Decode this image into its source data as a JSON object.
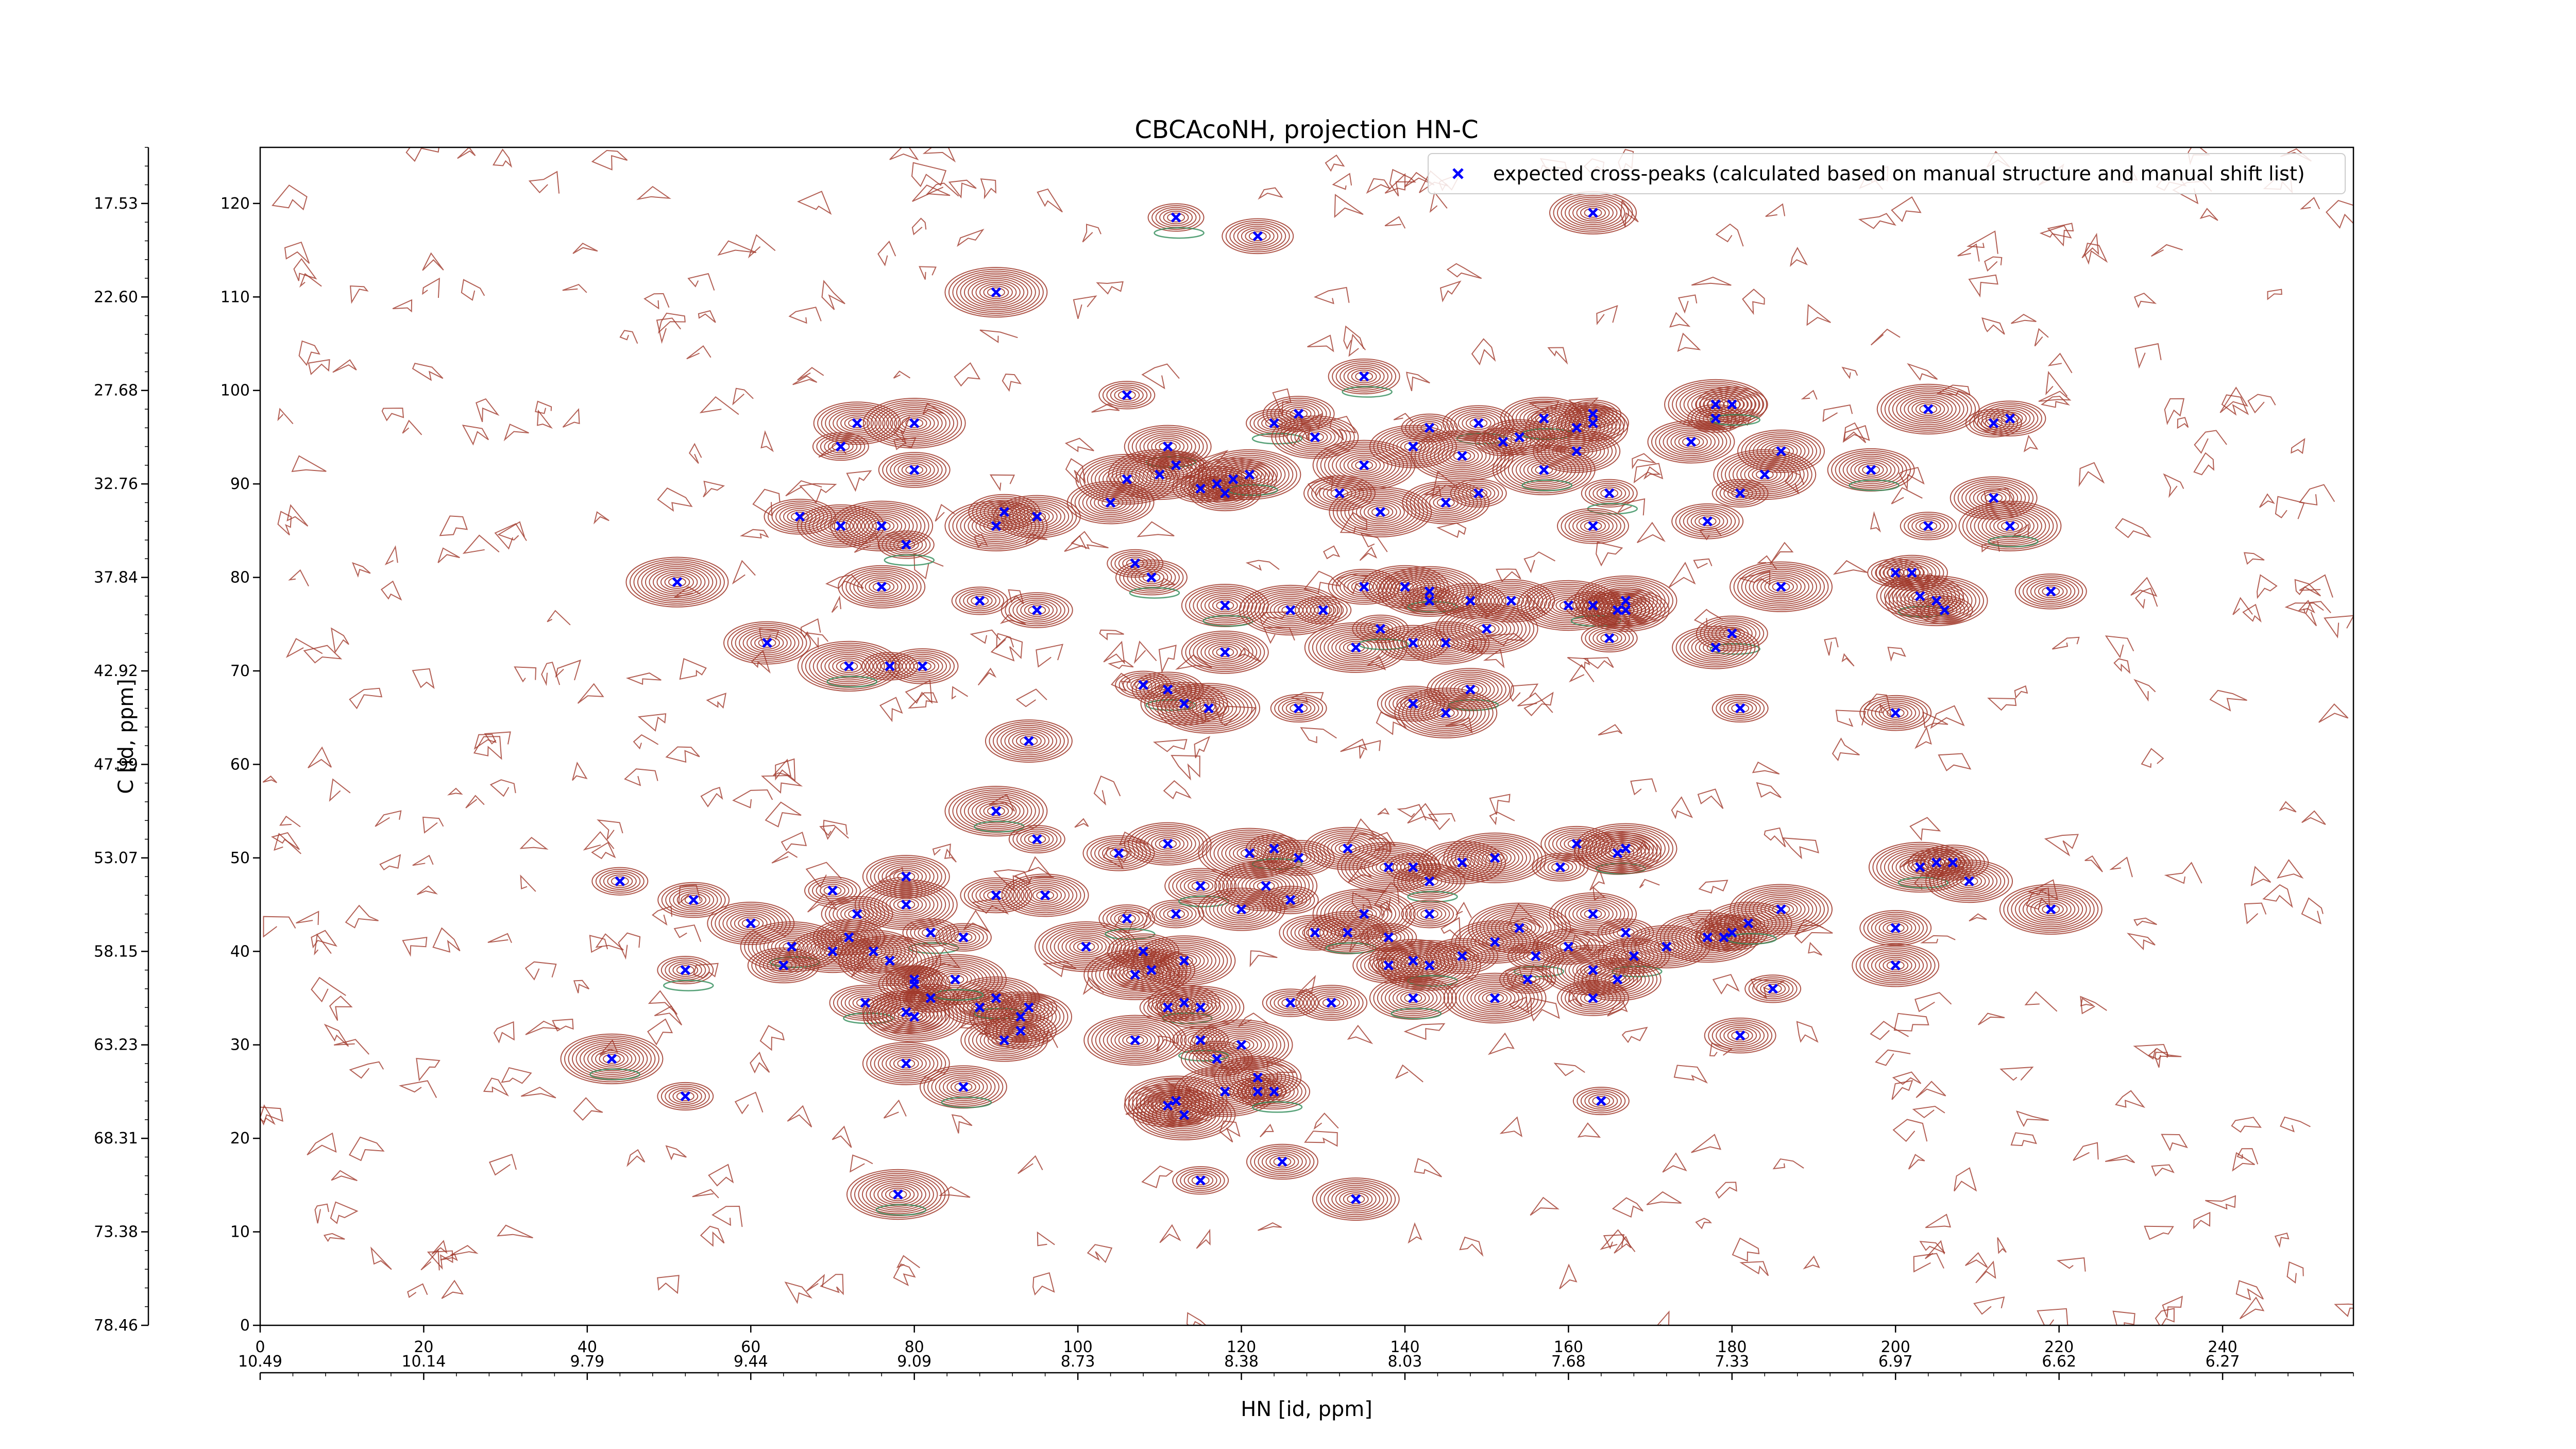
{
  "chart_data": {
    "type": "scatter",
    "title": "CBCAcoNH, projection HN-C",
    "xlabel": "HN [id, ppm]",
    "ylabel": "C [id, ppm]",
    "xlim": [
      0,
      256
    ],
    "ylim": [
      0,
      126
    ],
    "grid": false,
    "legend_position": "top-right",
    "x_ticks": [
      0,
      20,
      40,
      60,
      80,
      100,
      120,
      140,
      160,
      180,
      200,
      220,
      240
    ],
    "y_ticks": [
      0,
      10,
      20,
      30,
      40,
      50,
      60,
      70,
      80,
      90,
      100,
      110,
      120
    ],
    "ppm_x_ticks": [
      {
        "pos": 0,
        "label": "10.49"
      },
      {
        "pos": 20,
        "label": "10.14"
      },
      {
        "pos": 40,
        "label": "9.79"
      },
      {
        "pos": 60,
        "label": "9.44"
      },
      {
        "pos": 80,
        "label": "9.09"
      },
      {
        "pos": 100,
        "label": "8.73"
      },
      {
        "pos": 120,
        "label": "8.38"
      },
      {
        "pos": 140,
        "label": "8.03"
      },
      {
        "pos": 160,
        "label": "7.68"
      },
      {
        "pos": 180,
        "label": "7.33"
      },
      {
        "pos": 200,
        "label": "6.97"
      },
      {
        "pos": 220,
        "label": "6.62"
      },
      {
        "pos": 240,
        "label": "6.27"
      }
    ],
    "ppm_y_ticks": [
      {
        "pos": 120,
        "label": "17.53"
      },
      {
        "pos": 110,
        "label": "22.60"
      },
      {
        "pos": 100,
        "label": "27.68"
      },
      {
        "pos": 90,
        "label": "32.76"
      },
      {
        "pos": 80,
        "label": "37.84"
      },
      {
        "pos": 70,
        "label": "42.92"
      },
      {
        "pos": 60,
        "label": "47.99"
      },
      {
        "pos": 50,
        "label": "53.07"
      },
      {
        "pos": 40,
        "label": "58.15"
      },
      {
        "pos": 30,
        "label": "63.23"
      },
      {
        "pos": 20,
        "label": "68.31"
      },
      {
        "pos": 10,
        "label": "73.38"
      },
      {
        "pos": 0,
        "label": "78.46"
      }
    ],
    "series": [
      {
        "name": "expected cross-peaks (calculated based on manual structure and manual shift list)",
        "color": "#0000ff",
        "marker": "x",
        "points": [
          [
            112,
            118.5
          ],
          [
            122,
            116.5
          ],
          [
            163,
            119
          ],
          [
            90,
            110.5
          ],
          [
            106,
            99.5
          ],
          [
            135,
            101.5
          ],
          [
            73,
            96.5
          ],
          [
            80,
            96.5
          ],
          [
            71,
            94
          ],
          [
            80,
            91.5
          ],
          [
            111,
            94
          ],
          [
            110,
            91
          ],
          [
            112,
            92
          ],
          [
            117,
            90
          ],
          [
            119,
            90.5
          ],
          [
            121,
            91
          ],
          [
            115,
            89.5
          ],
          [
            118,
            89
          ],
          [
            104,
            88
          ],
          [
            106,
            90.5
          ],
          [
            124,
            96.5
          ],
          [
            127,
            97.5
          ],
          [
            129,
            95
          ],
          [
            135,
            92
          ],
          [
            143,
            96
          ],
          [
            149,
            96.5
          ],
          [
            141,
            94
          ],
          [
            147,
            93
          ],
          [
            152,
            94.5
          ],
          [
            154,
            95
          ],
          [
            157,
            97
          ],
          [
            161,
            96
          ],
          [
            163,
            97.5
          ],
          [
            163,
            96.5
          ],
          [
            161,
            93.5
          ],
          [
            157,
            91.5
          ],
          [
            149,
            89
          ],
          [
            132,
            89
          ],
          [
            145,
            88
          ],
          [
            137,
            87
          ],
          [
            165,
            89
          ],
          [
            163,
            85.5
          ],
          [
            175,
            94.5
          ],
          [
            178,
            98.5
          ],
          [
            178,
            97
          ],
          [
            180,
            98.5
          ],
          [
            186,
            93.5
          ],
          [
            184,
            91
          ],
          [
            181,
            89
          ],
          [
            177,
            86
          ],
          [
            197,
            91.5
          ],
          [
            204,
            98
          ],
          [
            212,
            96.5
          ],
          [
            214,
            97
          ],
          [
            212,
            88.5
          ],
          [
            214,
            85.5
          ],
          [
            204,
            85.5
          ],
          [
            66,
            86.5
          ],
          [
            71,
            85.5
          ],
          [
            76,
            85.5
          ],
          [
            79,
            83.5
          ],
          [
            91,
            87
          ],
          [
            95,
            86.5
          ],
          [
            90,
            85.5
          ],
          [
            107,
            81.5
          ],
          [
            109,
            80
          ],
          [
            76,
            79
          ],
          [
            51,
            79.5
          ],
          [
            88,
            77.5
          ],
          [
            95,
            76.5
          ],
          [
            118,
            77
          ],
          [
            126,
            76.5
          ],
          [
            130,
            76.5
          ],
          [
            135,
            79
          ],
          [
            140,
            79
          ],
          [
            143,
            78.5
          ],
          [
            143,
            77.5
          ],
          [
            148,
            77.5
          ],
          [
            153,
            77.5
          ],
          [
            160,
            77
          ],
          [
            163,
            77
          ],
          [
            166,
            76.5
          ],
          [
            167,
            76.5
          ],
          [
            167,
            77.5
          ],
          [
            165,
            73.5
          ],
          [
            180,
            74
          ],
          [
            178,
            72.5
          ],
          [
            186,
            79
          ],
          [
            200,
            80.5
          ],
          [
            202,
            80.5
          ],
          [
            203,
            78
          ],
          [
            205,
            77.5
          ],
          [
            206,
            76.5
          ],
          [
            219,
            78.5
          ],
          [
            62,
            73
          ],
          [
            72,
            70.5
          ],
          [
            77,
            70.5
          ],
          [
            81,
            70.5
          ],
          [
            118,
            72
          ],
          [
            134,
            72.5
          ],
          [
            137,
            74.5
          ],
          [
            141,
            73
          ],
          [
            145,
            73
          ],
          [
            150,
            74.5
          ],
          [
            108,
            68.5
          ],
          [
            111,
            68
          ],
          [
            113,
            66.5
          ],
          [
            116,
            66
          ],
          [
            127,
            66
          ],
          [
            141,
            66.5
          ],
          [
            148,
            68
          ],
          [
            145,
            65.5
          ],
          [
            181,
            66
          ],
          [
            200,
            65.5
          ],
          [
            94,
            62.5
          ],
          [
            90,
            55
          ],
          [
            95,
            52
          ],
          [
            105,
            50.5
          ],
          [
            111,
            51.5
          ],
          [
            121,
            50.5
          ],
          [
            124,
            51
          ],
          [
            127,
            50
          ],
          [
            133,
            51
          ],
          [
            138,
            49
          ],
          [
            141,
            49
          ],
          [
            143,
            47.5
          ],
          [
            147,
            49.5
          ],
          [
            151,
            50
          ],
          [
            159,
            49
          ],
          [
            161,
            51.5
          ],
          [
            166,
            50.5
          ],
          [
            167,
            51
          ],
          [
            44,
            47.5
          ],
          [
            53,
            45.5
          ],
          [
            60,
            43
          ],
          [
            65,
            40.5
          ],
          [
            70,
            46.5
          ],
          [
            73,
            44
          ],
          [
            79,
            48
          ],
          [
            79,
            45
          ],
          [
            82,
            42
          ],
          [
            72,
            41.5
          ],
          [
            75,
            40
          ],
          [
            77,
            39
          ],
          [
            80,
            37
          ],
          [
            74,
            34.5
          ],
          [
            79,
            33.5
          ],
          [
            80,
            33
          ],
          [
            82,
            35
          ],
          [
            88,
            34
          ],
          [
            90,
            35
          ],
          [
            93,
            33
          ],
          [
            94,
            34
          ],
          [
            93,
            31.5
          ],
          [
            91,
            30.5
          ],
          [
            85,
            37
          ],
          [
            86,
            41.5
          ],
          [
            90,
            46
          ],
          [
            96,
            46
          ],
          [
            101,
            40.5
          ],
          [
            106,
            43.5
          ],
          [
            108,
            40
          ],
          [
            109,
            38
          ],
          [
            113,
            39
          ],
          [
            112,
            44
          ],
          [
            115,
            47
          ],
          [
            120,
            44.5
          ],
          [
            123,
            47
          ],
          [
            126,
            45.5
          ],
          [
            129,
            42
          ],
          [
            133,
            42
          ],
          [
            135,
            44
          ],
          [
            138,
            41.5
          ],
          [
            138,
            38.5
          ],
          [
            141,
            39
          ],
          [
            143,
            38.5
          ],
          [
            143,
            44
          ],
          [
            147,
            39.5
          ],
          [
            151,
            41
          ],
          [
            154,
            42.5
          ],
          [
            156,
            39.5
          ],
          [
            160,
            40.5
          ],
          [
            163,
            44
          ],
          [
            163,
            38
          ],
          [
            167,
            42
          ],
          [
            168,
            39.5
          ],
          [
            172,
            40.5
          ],
          [
            177,
            41.5
          ],
          [
            179,
            41.5
          ],
          [
            180,
            42
          ],
          [
            182,
            43
          ],
          [
            186,
            44.5
          ],
          [
            185,
            36
          ],
          [
            200,
            42.5
          ],
          [
            200,
            38.5
          ],
          [
            203,
            49
          ],
          [
            205,
            49.5
          ],
          [
            207,
            49.5
          ],
          [
            209,
            47.5
          ],
          [
            219,
            44.5
          ],
          [
            52,
            38
          ],
          [
            64,
            38.5
          ],
          [
            70,
            40
          ],
          [
            107,
            37.5
          ],
          [
            111,
            34
          ],
          [
            113,
            34.5
          ],
          [
            115,
            34
          ],
          [
            120,
            30
          ],
          [
            126,
            34.5
          ],
          [
            131,
            34.5
          ],
          [
            141,
            35
          ],
          [
            151,
            35
          ],
          [
            155,
            37
          ],
          [
            163,
            35
          ],
          [
            166,
            37
          ],
          [
            43,
            28.5
          ],
          [
            52,
            24.5
          ],
          [
            80,
            36.5
          ],
          [
            79,
            28
          ],
          [
            107,
            30.5
          ],
          [
            115,
            30.5
          ],
          [
            117,
            28.5
          ],
          [
            122,
            26.5
          ],
          [
            118,
            25
          ],
          [
            122,
            25
          ],
          [
            124,
            25
          ],
          [
            111,
            23.5
          ],
          [
            112,
            24
          ],
          [
            164,
            24
          ],
          [
            181,
            31
          ],
          [
            86,
            25.5
          ],
          [
            113,
            22.5
          ],
          [
            115,
            15.5
          ],
          [
            125,
            17.5
          ],
          [
            134,
            13.5
          ],
          [
            78,
            14
          ]
        ]
      }
    ]
  }
}
